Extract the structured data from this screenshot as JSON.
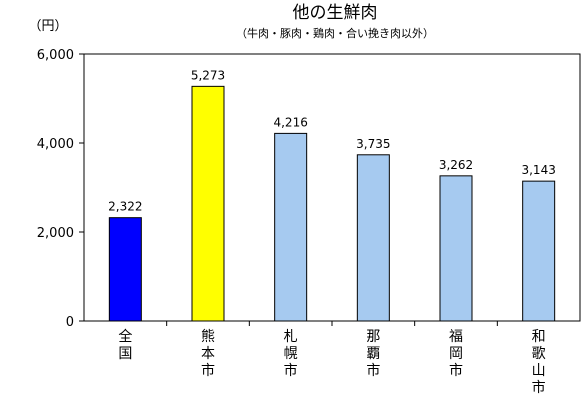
{
  "chart_data": {
    "type": "bar",
    "title": "他の生鮮肉",
    "subtitle": "（牛肉・豚肉・鶏肉・合い挽き肉以外）",
    "unit_label": "（円）",
    "categories": [
      "全国",
      "熊本市",
      "札幌市",
      "那覇市",
      "福岡市",
      "和歌山市"
    ],
    "values": [
      2322,
      5273,
      4216,
      3735,
      3262,
      3143
    ],
    "value_labels": [
      "2,322",
      "5,273",
      "4,216",
      "3,735",
      "3,262",
      "3,143"
    ],
    "bar_colors": [
      "#0000FF",
      "#FFFF00",
      "#A6CAF0",
      "#A6CAF0",
      "#A6CAF0",
      "#A6CAF0"
    ],
    "ylim": [
      0,
      6000
    ],
    "yticks": [
      0,
      2000,
      4000,
      6000
    ],
    "ytick_labels": [
      "0",
      "2,000",
      "4,000",
      "6,000"
    ],
    "grid": false,
    "legend": "none"
  }
}
